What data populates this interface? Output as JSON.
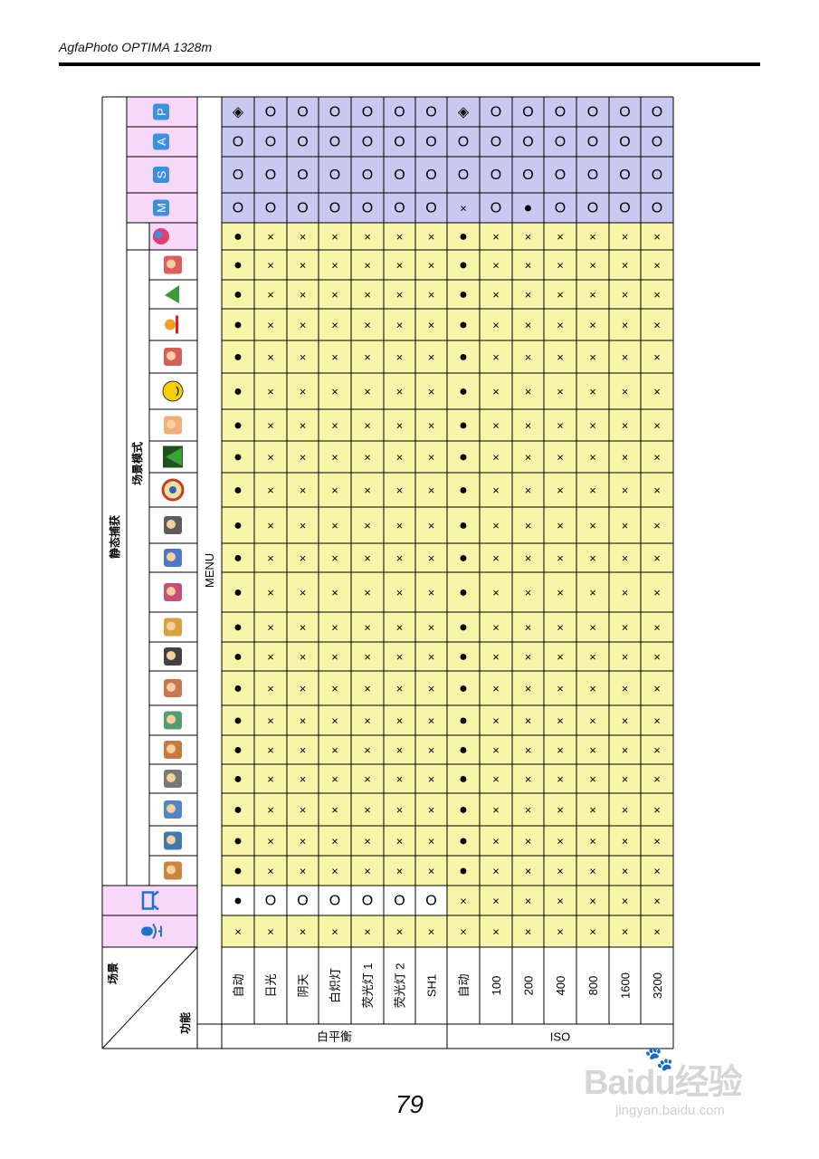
{
  "header": {
    "title": "AgfaPhoto OPTIMA 1328m"
  },
  "page_number": "79",
  "watermark": {
    "brand": "Baidu经验",
    "url": "jingyan.baidu.com"
  },
  "table": {
    "corner": {
      "scene_label": "场景",
      "function_label": "功能"
    },
    "menu_label": "MENU",
    "still_capture_label": "静态捕获",
    "scene_mode_label": "场景模式",
    "groups": [
      {
        "label": "白平衡",
        "rows": [
          0,
          1,
          2,
          3,
          4,
          5,
          6
        ]
      },
      {
        "label": "ISO",
        "rows": [
          7,
          8,
          9,
          10,
          11,
          12,
          13
        ]
      }
    ],
    "row_labels": [
      "自动",
      "日光",
      "阴天",
      "白炽灯",
      "荧光灯 1",
      "荧光灯 2",
      "SH1",
      "自动",
      "100",
      "200",
      "400",
      "800",
      "1600",
      "3200"
    ],
    "mode_columns": [
      {
        "label": "P",
        "icon": "program-mode-icon"
      },
      {
        "label": "A",
        "icon": "aperture-mode-icon"
      },
      {
        "label": "S",
        "icon": "shutter-mode-icon"
      },
      {
        "label": "M",
        "icon": "manual-mode-icon"
      }
    ],
    "scene_icons": [
      "smart-scene-icon",
      "portrait-icon",
      "landscape-icon",
      "sunset-icon",
      "backlight-icon",
      "smile-icon",
      "kids-icon",
      "night-scene-icon",
      "fireworks-icon",
      "snow-icon",
      "sport-icon",
      "party-icon",
      "candle-icon",
      "night-portrait-icon",
      "soft-skin-icon",
      "foliage-icon",
      "food-icon",
      "building-icon",
      "text-icon",
      "museum-icon",
      "fisheye-icon"
    ],
    "video_icon": "video-mode-icon",
    "voice_icon": "voice-record-icon",
    "column_values": [
      [
        "◈",
        "O",
        "O",
        "O",
        "O",
        "O",
        "O",
        "◈",
        "O",
        "O",
        "O",
        "O",
        "O",
        "O"
      ],
      [
        "O",
        "O",
        "O",
        "O",
        "O",
        "O",
        "O",
        "O",
        "O",
        "O",
        "O",
        "O",
        "O",
        "O"
      ],
      [
        "O",
        "O",
        "O",
        "O",
        "O",
        "O",
        "O",
        "O",
        "O",
        "O",
        "O",
        "O",
        "O",
        "O"
      ],
      [
        "O",
        "O",
        "O",
        "O",
        "O",
        "O",
        "O",
        "×",
        "O",
        "●",
        "O",
        "O",
        "O",
        "O"
      ],
      [
        "●",
        "×",
        "×",
        "×",
        "×",
        "×",
        "×",
        "●",
        "×",
        "×",
        "×",
        "×",
        "×",
        "×"
      ],
      [
        "●",
        "×",
        "×",
        "×",
        "×",
        "×",
        "×",
        "●",
        "×",
        "×",
        "×",
        "×",
        "×",
        "×"
      ],
      [
        "●",
        "×",
        "×",
        "×",
        "×",
        "×",
        "×",
        "●",
        "×",
        "×",
        "×",
        "×",
        "×",
        "×"
      ],
      [
        "●",
        "×",
        "×",
        "×",
        "×",
        "×",
        "×",
        "●",
        "×",
        "×",
        "×",
        "×",
        "×",
        "×"
      ],
      [
        "●",
        "×",
        "×",
        "×",
        "×",
        "×",
        "×",
        "●",
        "×",
        "×",
        "×",
        "×",
        "×",
        "×"
      ],
      [
        "●",
        "×",
        "×",
        "×",
        "×",
        "×",
        "×",
        "●",
        "×",
        "×",
        "×",
        "×",
        "×",
        "×"
      ],
      [
        "●",
        "×",
        "×",
        "×",
        "×",
        "×",
        "×",
        "●",
        "×",
        "×",
        "×",
        "×",
        "×",
        "×"
      ],
      [
        "●",
        "×",
        "×",
        "×",
        "×",
        "×",
        "×",
        "●",
        "×",
        "×",
        "×",
        "×",
        "×",
        "×"
      ],
      [
        "●",
        "×",
        "×",
        "×",
        "×",
        "×",
        "×",
        "●",
        "×",
        "×",
        "×",
        "×",
        "×",
        "×"
      ],
      [
        "●",
        "×",
        "×",
        "×",
        "×",
        "×",
        "×",
        "●",
        "×",
        "×",
        "×",
        "×",
        "×",
        "×"
      ],
      [
        "●",
        "×",
        "×",
        "×",
        "×",
        "×",
        "×",
        "●",
        "×",
        "×",
        "×",
        "×",
        "×",
        "×"
      ],
      [
        "●",
        "×",
        "×",
        "×",
        "×",
        "×",
        "×",
        "●",
        "×",
        "×",
        "×",
        "×",
        "×",
        "×"
      ],
      [
        "●",
        "×",
        "×",
        "×",
        "×",
        "×",
        "×",
        "●",
        "×",
        "×",
        "×",
        "×",
        "×",
        "×"
      ],
      [
        "●",
        "×",
        "×",
        "×",
        "×",
        "×",
        "×",
        "●",
        "×",
        "×",
        "×",
        "×",
        "×",
        "×"
      ],
      [
        "●",
        "×",
        "×",
        "×",
        "×",
        "×",
        "×",
        "●",
        "×",
        "×",
        "×",
        "×",
        "×",
        "×"
      ],
      [
        "●",
        "×",
        "×",
        "×",
        "×",
        "×",
        "×",
        "●",
        "×",
        "×",
        "×",
        "×",
        "×",
        "×"
      ],
      [
        "●",
        "×",
        "×",
        "×",
        "×",
        "×",
        "×",
        "●",
        "×",
        "×",
        "×",
        "×",
        "×",
        "×"
      ],
      [
        "●",
        "×",
        "×",
        "×",
        "×",
        "×",
        "×",
        "●",
        "×",
        "×",
        "×",
        "×",
        "×",
        "×"
      ],
      [
        "●",
        "×",
        "×",
        "×",
        "×",
        "×",
        "×",
        "●",
        "×",
        "×",
        "×",
        "×",
        "×",
        "×"
      ],
      [
        "●",
        "×",
        "×",
        "×",
        "×",
        "×",
        "×",
        "●",
        "×",
        "×",
        "×",
        "×",
        "×",
        "×"
      ],
      [
        "●",
        "×",
        "×",
        "×",
        "×",
        "×",
        "×",
        "●",
        "×",
        "×",
        "×",
        "×",
        "×",
        "×"
      ],
      [
        "●",
        "O",
        "O",
        "O",
        "O",
        "O",
        "O",
        "×",
        "×",
        "×",
        "×",
        "×",
        "×",
        "×"
      ],
      [
        "×",
        "×",
        "×",
        "×",
        "×",
        "×",
        "×",
        "×",
        "×",
        "×",
        "×",
        "×",
        "×",
        "×"
      ]
    ],
    "colors": {
      "mode_bg": "#c8c8f0",
      "scene_bg": "#f7f5a8",
      "header_pink": "#f8d8f8",
      "mode_badge": "#3d8fe0",
      "video_bg": "#ffffff"
    }
  }
}
